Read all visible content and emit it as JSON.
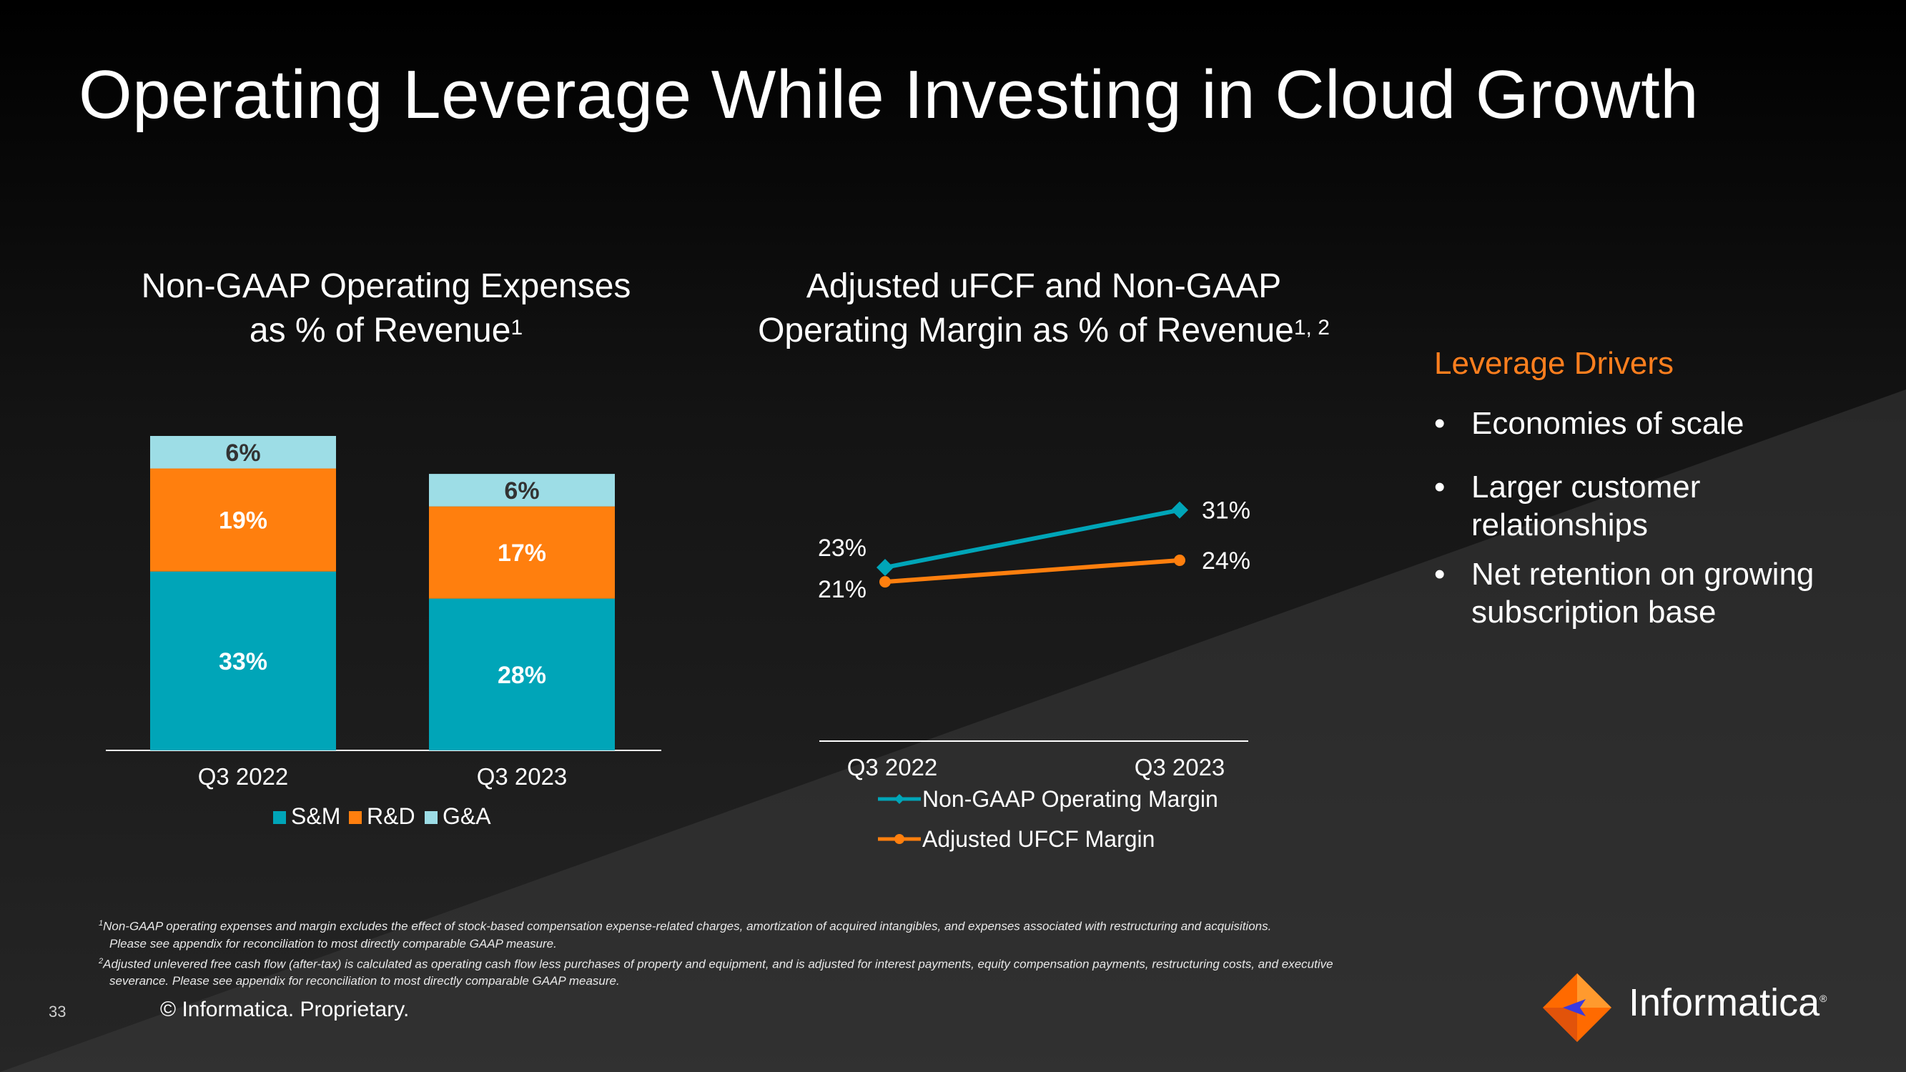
{
  "slide": {
    "title": "Operating Leverage While Investing in Cloud Growth",
    "page_number": "33",
    "copyright": "© Informatica. Proprietary.",
    "logo_text": "Informatica",
    "colors": {
      "teal": "#00a5b8",
      "orange": "#ff7f0e",
      "light_blue": "#9ddde6",
      "accent_text": "#ff7f1e"
    }
  },
  "drivers": {
    "title": "Leverage Drivers",
    "items": [
      "Economies of scale",
      "Larger customer relationships",
      "Net retention on growing subscription base"
    ]
  },
  "footnotes": {
    "f1_mark": "1",
    "f1_text": "Non-GAAP operating expenses and margin excludes the effect of stock-based compensation expense-related charges, amortization of acquired intangibles, and expenses associated with restructuring and acquisitions.",
    "f1_cont": "Please see appendix for reconciliation to most directly comparable GAAP measure.",
    "f2_mark": "2",
    "f2_text": "Adjusted unlevered free cash flow (after-tax) is calculated as operating cash flow less purchases of property and equipment, and is adjusted for interest payments, equity compensation payments, restructuring costs, and executive",
    "f2_cont": "severance. Please see appendix for reconciliation to most directly comparable GAAP measure."
  },
  "chart_data": [
    {
      "type": "bar",
      "stacked": true,
      "title_line1": "Non-GAAP Operating Expenses",
      "title_line2": "as % of Revenue",
      "title_sup": "1",
      "categories": [
        "Q3 2022",
        "Q3 2023"
      ],
      "series": [
        {
          "name": "S&M",
          "values": [
            33,
            28
          ],
          "labels": [
            "33%",
            "28%"
          ],
          "color": "#00a5b8"
        },
        {
          "name": "R&D",
          "values": [
            19,
            17
          ],
          "labels": [
            "19%",
            "17%"
          ],
          "color": "#ff7f0e"
        },
        {
          "name": "G&A",
          "values": [
            6,
            6
          ],
          "labels": [
            "6%",
            "6%"
          ],
          "color": "#9ddde6"
        }
      ],
      "legend_position": "bottom",
      "ylim": [
        0,
        58
      ],
      "grid": false
    },
    {
      "type": "line",
      "title_line1": "Adjusted uFCF and Non-GAAP",
      "title_line2": "Operating Margin as % of Revenue",
      "title_sup": "1, 2",
      "categories": [
        "Q3 2022",
        "Q3 2023"
      ],
      "series": [
        {
          "name": "Non-GAAP Operating Margin",
          "values": [
            23,
            31
          ],
          "labels": [
            "23%",
            "31%"
          ],
          "color": "#00a5b8",
          "marker": "diamond"
        },
        {
          "name": "Adjusted UFCF Margin",
          "values": [
            21,
            24
          ],
          "labels": [
            "21%",
            "24%"
          ],
          "color": "#ff7f0e",
          "marker": "circle"
        }
      ],
      "legend_position": "bottom",
      "ylim": [
        0,
        35
      ],
      "grid": false
    }
  ]
}
